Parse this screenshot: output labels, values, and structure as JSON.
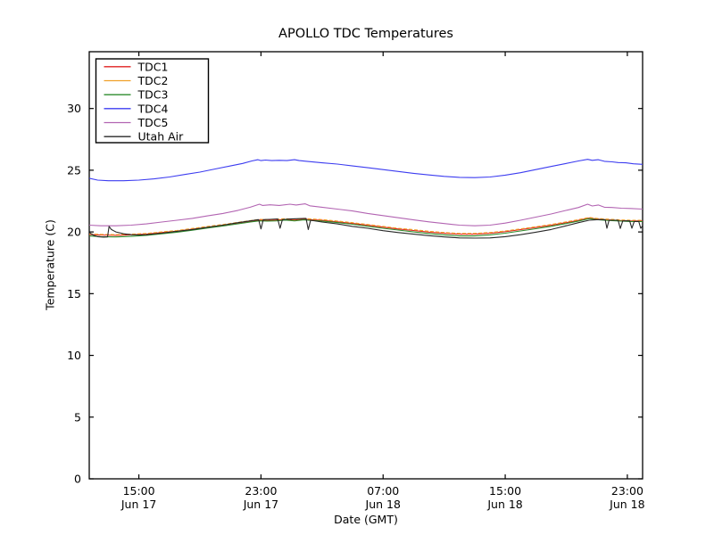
{
  "figure": {
    "background": "#ffffff",
    "axes_edge_color": "#000000",
    "text_color": "#000000"
  },
  "chart_data": {
    "type": "line",
    "title": "APOLLO TDC Temperatures",
    "xlabel": "Date (GMT)",
    "ylabel": "Temperature (C)",
    "grid": false,
    "legend_position": "upper left",
    "ylim": [
      0,
      34.6
    ],
    "yticks": [
      0,
      5,
      10,
      15,
      20,
      25,
      30
    ],
    "x_hours_range": [
      11.75,
      48.0
    ],
    "xticks": [
      {
        "t": 15,
        "time": "15:00",
        "date": "Jun 17"
      },
      {
        "t": 23,
        "time": "23:00",
        "date": "Jun 17"
      },
      {
        "t": 31,
        "time": "07:00",
        "date": "Jun 18"
      },
      {
        "t": 39,
        "time": "15:00",
        "date": "Jun 18"
      },
      {
        "t": 47,
        "time": "23:00",
        "date": "Jun 18"
      }
    ],
    "series": [
      {
        "name": "TDC1",
        "color": "#e02020",
        "points": [
          [
            11.75,
            19.8
          ],
          [
            12.5,
            19.75
          ],
          [
            13.5,
            19.73
          ],
          [
            14.5,
            19.77
          ],
          [
            15.5,
            19.83
          ],
          [
            16.5,
            19.95
          ],
          [
            17.5,
            20.07
          ],
          [
            18.5,
            20.22
          ],
          [
            19.5,
            20.38
          ],
          [
            20.5,
            20.54
          ],
          [
            21.5,
            20.72
          ],
          [
            22.3,
            20.86
          ],
          [
            22.9,
            20.96
          ],
          [
            23.4,
            20.94
          ],
          [
            24.0,
            20.96
          ],
          [
            24.6,
            21.02
          ],
          [
            25.2,
            20.96
          ],
          [
            25.8,
            21.04
          ],
          [
            26.3,
            20.99
          ],
          [
            27.0,
            20.94
          ],
          [
            28.0,
            20.82
          ],
          [
            29.0,
            20.69
          ],
          [
            30.0,
            20.54
          ],
          [
            31.0,
            20.39
          ],
          [
            32.0,
            20.24
          ],
          [
            33.0,
            20.12
          ],
          [
            34.0,
            19.99
          ],
          [
            35.0,
            19.89
          ],
          [
            36.0,
            19.82
          ],
          [
            37.0,
            19.82
          ],
          [
            38.0,
            19.89
          ],
          [
            39.0,
            20.02
          ],
          [
            40.0,
            20.19
          ],
          [
            41.0,
            20.36
          ],
          [
            42.0,
            20.54
          ],
          [
            43.0,
            20.76
          ],
          [
            43.8,
            20.94
          ],
          [
            44.5,
            21.12
          ],
          [
            45.0,
            21.04
          ],
          [
            45.5,
            20.99
          ],
          [
            46.0,
            20.96
          ],
          [
            46.6,
            20.92
          ],
          [
            47.2,
            20.89
          ],
          [
            48.0,
            20.89
          ]
        ]
      },
      {
        "name": "TDC2",
        "color": "#f0a028",
        "points": [
          [
            11.75,
            19.85
          ],
          [
            12.5,
            19.8
          ],
          [
            13.5,
            19.78
          ],
          [
            14.5,
            19.82
          ],
          [
            15.5,
            19.88
          ],
          [
            16.5,
            20.0
          ],
          [
            17.5,
            20.12
          ],
          [
            18.5,
            20.28
          ],
          [
            19.5,
            20.45
          ],
          [
            20.5,
            20.6
          ],
          [
            21.5,
            20.78
          ],
          [
            22.3,
            20.92
          ],
          [
            22.9,
            21.02
          ],
          [
            23.4,
            21.0
          ],
          [
            24.0,
            21.02
          ],
          [
            24.6,
            21.08
          ],
          [
            25.2,
            21.02
          ],
          [
            25.8,
            21.1
          ],
          [
            26.3,
            21.05
          ],
          [
            27.0,
            21.0
          ],
          [
            28.0,
            20.88
          ],
          [
            29.0,
            20.75
          ],
          [
            30.0,
            20.6
          ],
          [
            31.0,
            20.45
          ],
          [
            32.0,
            20.3
          ],
          [
            33.0,
            20.18
          ],
          [
            34.0,
            20.05
          ],
          [
            35.0,
            19.95
          ],
          [
            36.0,
            19.88
          ],
          [
            37.0,
            19.88
          ],
          [
            38.0,
            19.95
          ],
          [
            39.0,
            20.08
          ],
          [
            40.0,
            20.25
          ],
          [
            41.0,
            20.42
          ],
          [
            42.0,
            20.6
          ],
          [
            43.0,
            20.82
          ],
          [
            43.8,
            21.0
          ],
          [
            44.5,
            21.18
          ],
          [
            45.0,
            21.1
          ],
          [
            45.5,
            21.05
          ],
          [
            46.0,
            21.02
          ],
          [
            46.6,
            20.98
          ],
          [
            47.2,
            20.95
          ],
          [
            48.0,
            20.95
          ]
        ]
      },
      {
        "name": "TDC3",
        "color": "#2c8c2c",
        "points": [
          [
            11.75,
            19.68
          ],
          [
            12.5,
            19.62
          ],
          [
            13.5,
            19.6
          ],
          [
            14.5,
            19.64
          ],
          [
            15.5,
            19.72
          ],
          [
            16.5,
            19.85
          ],
          [
            17.5,
            19.98
          ],
          [
            18.5,
            20.14
          ],
          [
            19.5,
            20.32
          ],
          [
            20.5,
            20.48
          ],
          [
            21.5,
            20.66
          ],
          [
            22.3,
            20.8
          ],
          [
            22.9,
            20.9
          ],
          [
            23.4,
            20.88
          ],
          [
            24.0,
            20.9
          ],
          [
            24.6,
            20.96
          ],
          [
            25.2,
            20.9
          ],
          [
            25.8,
            20.98
          ],
          [
            26.3,
            20.93
          ],
          [
            27.0,
            20.88
          ],
          [
            28.0,
            20.76
          ],
          [
            29.0,
            20.62
          ],
          [
            30.0,
            20.46
          ],
          [
            31.0,
            20.3
          ],
          [
            32.0,
            20.15
          ],
          [
            33.0,
            20.0
          ],
          [
            34.0,
            19.87
          ],
          [
            35.0,
            19.76
          ],
          [
            36.0,
            19.68
          ],
          [
            37.0,
            19.68
          ],
          [
            38.0,
            19.76
          ],
          [
            39.0,
            19.9
          ],
          [
            40.0,
            20.08
          ],
          [
            41.0,
            20.26
          ],
          [
            42.0,
            20.46
          ],
          [
            43.0,
            20.68
          ],
          [
            43.8,
            20.88
          ],
          [
            44.5,
            21.08
          ],
          [
            45.0,
            21.0
          ],
          [
            45.5,
            20.95
          ],
          [
            46.0,
            20.92
          ],
          [
            46.6,
            20.88
          ],
          [
            47.2,
            20.85
          ],
          [
            48.0,
            20.85
          ]
        ]
      },
      {
        "name": "TDC4",
        "color": "#3c3cf0",
        "points": [
          [
            11.75,
            24.35
          ],
          [
            12.3,
            24.2
          ],
          [
            13.0,
            24.15
          ],
          [
            14.0,
            24.15
          ],
          [
            15.0,
            24.2
          ],
          [
            16.0,
            24.3
          ],
          [
            17.0,
            24.45
          ],
          [
            18.0,
            24.65
          ],
          [
            19.0,
            24.85
          ],
          [
            20.0,
            25.1
          ],
          [
            21.0,
            25.35
          ],
          [
            21.8,
            25.55
          ],
          [
            22.4,
            25.75
          ],
          [
            22.8,
            25.85
          ],
          [
            23.0,
            25.78
          ],
          [
            23.3,
            25.82
          ],
          [
            23.7,
            25.78
          ],
          [
            24.2,
            25.8
          ],
          [
            24.7,
            25.78
          ],
          [
            25.2,
            25.85
          ],
          [
            25.5,
            25.78
          ],
          [
            26.0,
            25.72
          ],
          [
            27.0,
            25.6
          ],
          [
            28.0,
            25.5
          ],
          [
            29.0,
            25.35
          ],
          [
            30.0,
            25.2
          ],
          [
            31.0,
            25.05
          ],
          [
            32.0,
            24.9
          ],
          [
            33.0,
            24.75
          ],
          [
            34.0,
            24.62
          ],
          [
            35.0,
            24.5
          ],
          [
            36.0,
            24.42
          ],
          [
            37.0,
            24.4
          ],
          [
            38.0,
            24.45
          ],
          [
            39.0,
            24.6
          ],
          [
            40.0,
            24.8
          ],
          [
            41.0,
            25.05
          ],
          [
            42.0,
            25.3
          ],
          [
            43.0,
            25.55
          ],
          [
            43.8,
            25.75
          ],
          [
            44.4,
            25.88
          ],
          [
            44.7,
            25.8
          ],
          [
            45.1,
            25.85
          ],
          [
            45.5,
            25.72
          ],
          [
            46.0,
            25.68
          ],
          [
            46.4,
            25.62
          ],
          [
            46.9,
            25.6
          ],
          [
            47.4,
            25.52
          ],
          [
            48.0,
            25.48
          ]
        ]
      },
      {
        "name": "TDC5",
        "color": "#b264b2",
        "points": [
          [
            11.75,
            20.55
          ],
          [
            12.5,
            20.5
          ],
          [
            13.5,
            20.5
          ],
          [
            14.5,
            20.55
          ],
          [
            15.5,
            20.65
          ],
          [
            16.5,
            20.8
          ],
          [
            17.5,
            20.95
          ],
          [
            18.5,
            21.1
          ],
          [
            19.5,
            21.3
          ],
          [
            20.5,
            21.5
          ],
          [
            21.5,
            21.75
          ],
          [
            22.3,
            22.0
          ],
          [
            22.9,
            22.25
          ],
          [
            23.1,
            22.15
          ],
          [
            23.6,
            22.2
          ],
          [
            24.2,
            22.15
          ],
          [
            24.9,
            22.25
          ],
          [
            25.3,
            22.18
          ],
          [
            25.9,
            22.28
          ],
          [
            26.2,
            22.12
          ],
          [
            27.0,
            22.0
          ],
          [
            28.0,
            21.85
          ],
          [
            29.0,
            21.7
          ],
          [
            30.0,
            21.5
          ],
          [
            31.0,
            21.32
          ],
          [
            32.0,
            21.15
          ],
          [
            33.0,
            20.98
          ],
          [
            34.0,
            20.82
          ],
          [
            35.0,
            20.68
          ],
          [
            36.0,
            20.55
          ],
          [
            37.0,
            20.5
          ],
          [
            38.0,
            20.55
          ],
          [
            39.0,
            20.72
          ],
          [
            40.0,
            20.95
          ],
          [
            41.0,
            21.2
          ],
          [
            42.0,
            21.45
          ],
          [
            43.0,
            21.75
          ],
          [
            43.8,
            21.98
          ],
          [
            44.4,
            22.25
          ],
          [
            44.7,
            22.1
          ],
          [
            45.1,
            22.18
          ],
          [
            45.5,
            22.0
          ],
          [
            46.0,
            21.98
          ],
          [
            46.6,
            21.92
          ],
          [
            47.2,
            21.9
          ],
          [
            48.0,
            21.85
          ]
        ]
      },
      {
        "name": "Utah Air",
        "color": "#282828",
        "points": [
          [
            11.75,
            19.95
          ],
          [
            12.0,
            19.75
          ],
          [
            12.3,
            19.62
          ],
          [
            12.7,
            19.58
          ],
          [
            12.95,
            19.6
          ],
          [
            13.05,
            20.45
          ],
          [
            13.2,
            20.2
          ],
          [
            13.5,
            20.0
          ],
          [
            14.0,
            19.85
          ],
          [
            14.5,
            19.78
          ],
          [
            15.0,
            19.75
          ],
          [
            15.5,
            19.78
          ],
          [
            16.5,
            19.9
          ],
          [
            17.5,
            20.05
          ],
          [
            18.5,
            20.2
          ],
          [
            19.5,
            20.38
          ],
          [
            20.5,
            20.55
          ],
          [
            21.5,
            20.75
          ],
          [
            22.3,
            20.9
          ],
          [
            22.85,
            21.0
          ],
          [
            23.0,
            20.25
          ],
          [
            23.15,
            21.0
          ],
          [
            23.6,
            21.02
          ],
          [
            24.1,
            21.05
          ],
          [
            24.25,
            20.3
          ],
          [
            24.4,
            21.0
          ],
          [
            24.9,
            21.05
          ],
          [
            25.5,
            21.08
          ],
          [
            25.95,
            21.1
          ],
          [
            26.1,
            20.2
          ],
          [
            26.25,
            20.95
          ],
          [
            27.0,
            20.8
          ],
          [
            28.0,
            20.65
          ],
          [
            29.0,
            20.45
          ],
          [
            30.0,
            20.3
          ],
          [
            31.0,
            20.1
          ],
          [
            32.0,
            19.95
          ],
          [
            33.0,
            19.82
          ],
          [
            34.0,
            19.7
          ],
          [
            35.0,
            19.6
          ],
          [
            36.0,
            19.52
          ],
          [
            37.0,
            19.5
          ],
          [
            38.0,
            19.52
          ],
          [
            39.0,
            19.62
          ],
          [
            40.0,
            19.78
          ],
          [
            41.0,
            19.98
          ],
          [
            42.0,
            20.2
          ],
          [
            43.0,
            20.5
          ],
          [
            43.8,
            20.75
          ],
          [
            44.5,
            20.95
          ],
          [
            45.1,
            21.0
          ],
          [
            45.55,
            21.0
          ],
          [
            45.66,
            20.3
          ],
          [
            45.8,
            20.95
          ],
          [
            46.4,
            20.95
          ],
          [
            46.54,
            20.28
          ],
          [
            46.7,
            20.9
          ],
          [
            47.15,
            20.9
          ],
          [
            47.3,
            20.3
          ],
          [
            47.45,
            20.85
          ],
          [
            47.75,
            20.85
          ],
          [
            47.88,
            20.3
          ],
          [
            48.0,
            20.5
          ]
        ]
      }
    ]
  }
}
